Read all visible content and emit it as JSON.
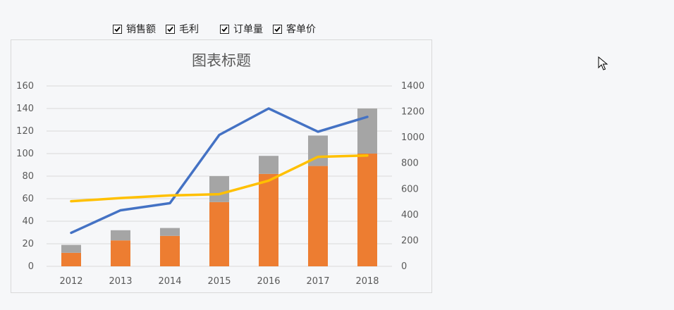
{
  "toolbar": {
    "checkboxes": [
      {
        "label": "销售额",
        "checked": true
      },
      {
        "label": "毛利",
        "checked": true
      },
      {
        "label": "订单量",
        "checked": true
      },
      {
        "label": "客单价",
        "checked": true
      }
    ]
  },
  "chart_data": {
    "type": "bar",
    "title": "图表标题",
    "categories": [
      "2012",
      "2013",
      "2014",
      "2015",
      "2016",
      "2017",
      "2018"
    ],
    "stacked": true,
    "bar_series": [
      {
        "values": [
          12,
          23,
          27,
          57,
          82,
          89,
          100
        ],
        "color": "#ed7d31",
        "axis": "left"
      },
      {
        "values": [
          7,
          9,
          7,
          23,
          16,
          27,
          40
        ],
        "color": "#a5a5a5",
        "axis": "left"
      }
    ],
    "line_series": [
      {
        "values": [
          260,
          435,
          490,
          1020,
          1225,
          1045,
          1160
        ],
        "color": "#4472c4",
        "axis": "right"
      },
      {
        "values": [
          505,
          530,
          550,
          560,
          665,
          850,
          860
        ],
        "color": "#ffc000",
        "axis": "right"
      }
    ],
    "y_left": {
      "min": 0,
      "max": 160,
      "ticks": [
        "0",
        "20",
        "40",
        "60",
        "80",
        "100",
        "120",
        "140",
        "160"
      ]
    },
    "y_right": {
      "min": 0,
      "max": 1400,
      "ticks": [
        "0",
        "200",
        "400",
        "600",
        "800",
        "1000",
        "1200",
        "1400"
      ]
    },
    "grid": true,
    "legend": "none"
  }
}
